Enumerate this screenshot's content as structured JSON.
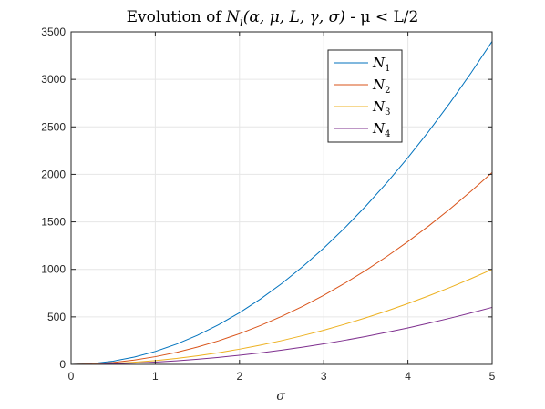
{
  "chart_data": {
    "type": "line",
    "title": "Evolution of N_i(α, μ, L, γ, σ) - μ < L/2",
    "title_parts": {
      "prefix": "Evolution of ",
      "func": "N",
      "sub": "i",
      "args": "(α, μ, L, γ, σ)",
      "suffix": " - μ < L/2"
    },
    "xlabel": "σ",
    "ylabel": "",
    "xlim": [
      0,
      5
    ],
    "ylim": [
      0,
      3500
    ],
    "xticks": [
      0,
      1,
      2,
      3,
      4,
      5
    ],
    "yticks": [
      0,
      500,
      1000,
      1500,
      2000,
      2500,
      3000,
      3500
    ],
    "grid": true,
    "legend_position": "top-right",
    "x": [
      0,
      0.25,
      0.5,
      0.75,
      1,
      1.25,
      1.5,
      1.75,
      2,
      2.25,
      2.5,
      2.75,
      3,
      3.25,
      3.5,
      3.75,
      4,
      4.25,
      4.5,
      4.75,
      5
    ],
    "series": [
      {
        "name": "N",
        "sub": "1",
        "color": "#0072BD",
        "values": [
          0,
          8.5,
          34,
          76.5,
          136,
          212.5,
          306,
          416.5,
          544,
          688.5,
          850,
          1028.5,
          1224,
          1436.5,
          1666,
          1912.5,
          2176,
          2456.5,
          2754,
          3068.5,
          3400
        ]
      },
      {
        "name": "N",
        "sub": "2",
        "color": "#D95319",
        "values": [
          0,
          5.1,
          20.2,
          45.5,
          80.8,
          126.3,
          181.8,
          247.5,
          323.2,
          409.1,
          505,
          611.1,
          727.2,
          853.5,
          989.8,
          1136.3,
          1292.8,
          1459.5,
          1636.2,
          1823.1,
          2020
        ]
      },
      {
        "name": "N",
        "sub": "3",
        "color": "#EDB120",
        "values": [
          0,
          2.5,
          10,
          22.5,
          40,
          62.5,
          90,
          122.5,
          160,
          202.5,
          250,
          302.5,
          360,
          422.5,
          490,
          562.5,
          640,
          722.5,
          810,
          902.5,
          1000
        ]
      },
      {
        "name": "N",
        "sub": "4",
        "color": "#7E2F8E",
        "values": [
          0,
          1.5,
          6,
          13.5,
          24,
          37.5,
          54,
          73.5,
          96,
          121.5,
          150,
          181.5,
          216,
          253.5,
          294,
          337.5,
          384,
          433.5,
          486,
          541.5,
          600
        ]
      }
    ]
  }
}
